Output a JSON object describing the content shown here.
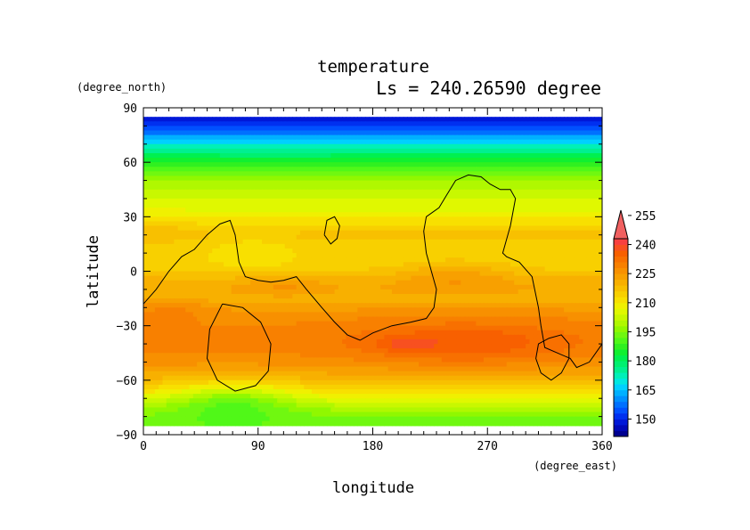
{
  "chart_data": {
    "type": "heatmap",
    "title": "temperature",
    "subtitle": "Ls = 240.26590 degree",
    "xlabel": "longitude",
    "ylabel": "latitude",
    "x_units": "(degree_east)",
    "y_units": "(degree_north)",
    "xlim": [
      0,
      360
    ],
    "ylim": [
      -90,
      90
    ],
    "x_ticks": [
      0,
      90,
      180,
      270,
      360
    ],
    "y_ticks": [
      90,
      60,
      30,
      0,
      -30,
      -60,
      -90
    ],
    "x_tick_labels": [
      "0",
      "90",
      "180",
      "270",
      "360"
    ],
    "y_tick_labels": [
      "90",
      "60",
      "30",
      "0",
      "−30",
      "−60",
      "−90"
    ],
    "grid": false,
    "colorbar": {
      "levels": [
        141,
        144,
        147,
        150,
        153,
        156,
        159,
        162,
        165,
        168,
        171,
        174,
        177,
        180,
        183,
        186,
        189,
        192,
        195,
        198,
        201,
        204,
        207,
        210,
        213,
        216,
        219,
        222,
        225,
        228,
        231,
        234,
        237,
        240,
        243,
        246,
        249,
        252,
        255,
        258
      ],
      "tick_values": [
        150,
        165,
        180,
        195,
        210,
        225,
        240,
        255
      ],
      "tick_labels": [
        "150",
        "165",
        "180",
        "195",
        "210",
        "225",
        "240",
        "255"
      ],
      "extend": "max"
    },
    "latitude_profile": {
      "lat": [
        85,
        80,
        75,
        70,
        65,
        60,
        55,
        50,
        45,
        40,
        35,
        30,
        25,
        20,
        15,
        10,
        5,
        0,
        -5,
        -10,
        -15,
        -20,
        -25,
        -30,
        -35,
        -40,
        -45,
        -50,
        -55,
        -60,
        -65,
        -70,
        -75,
        -80,
        -85
      ],
      "temp": [
        147,
        152,
        160,
        170,
        178,
        186,
        192,
        198,
        201,
        204,
        206,
        209,
        214,
        217,
        215,
        214,
        214,
        216,
        220,
        222,
        220,
        224,
        227,
        228,
        229,
        229,
        228,
        226,
        223,
        219,
        214,
        207,
        200,
        195,
        193
      ]
    },
    "anomalies": [
      {
        "lon": 250,
        "lat": -40,
        "rlon": 80,
        "rlat": 12,
        "delta": 8
      },
      {
        "lon": 205,
        "lat": -40,
        "rlon": 18,
        "rlat": 4,
        "delta": 5
      },
      {
        "lon": 70,
        "lat": -70,
        "rlon": 50,
        "rlat": 10,
        "delta": -12
      },
      {
        "lon": 85,
        "lat": 10,
        "rlon": 30,
        "rlat": 10,
        "delta": -4
      },
      {
        "lon": 20,
        "lat": -20,
        "rlon": 30,
        "rlat": 6,
        "delta": 4
      },
      {
        "lon": 245,
        "lat": -2,
        "rlon": 45,
        "rlat": 8,
        "delta": 6
      },
      {
        "lon": 110,
        "lat": -8,
        "rlon": 30,
        "rlat": 6,
        "delta": 4
      },
      {
        "lon": 10,
        "lat": 25,
        "rlon": 20,
        "rlat": 8,
        "delta": 3
      }
    ],
    "contours": [
      {
        "name": "main-boundary",
        "points": [
          [
            0,
            -18
          ],
          [
            10,
            -10
          ],
          [
            20,
            0
          ],
          [
            30,
            8
          ],
          [
            40,
            12
          ],
          [
            50,
            20
          ],
          [
            60,
            26
          ],
          [
            68,
            28
          ],
          [
            72,
            20
          ],
          [
            75,
            5
          ],
          [
            80,
            -3
          ],
          [
            90,
            -5
          ],
          [
            100,
            -6
          ],
          [
            110,
            -5
          ],
          [
            120,
            -3
          ],
          [
            128,
            -10
          ],
          [
            140,
            -20
          ],
          [
            150,
            -28
          ],
          [
            160,
            -35
          ],
          [
            170,
            -38
          ],
          [
            180,
            -34
          ],
          [
            195,
            -30
          ],
          [
            210,
            -28
          ],
          [
            222,
            -26
          ],
          [
            228,
            -20
          ],
          [
            230,
            -10
          ],
          [
            226,
            0
          ],
          [
            222,
            10
          ],
          [
            220,
            22
          ],
          [
            222,
            30
          ],
          [
            232,
            35
          ],
          [
            238,
            42
          ],
          [
            245,
            50
          ],
          [
            255,
            53
          ],
          [
            265,
            52
          ],
          [
            272,
            48
          ],
          [
            280,
            45
          ],
          [
            288,
            45
          ],
          [
            292,
            40
          ],
          [
            288,
            25
          ],
          [
            282,
            10
          ],
          [
            285,
            8
          ],
          [
            295,
            5
          ],
          [
            305,
            -3
          ],
          [
            310,
            -20
          ],
          [
            312,
            -30
          ],
          [
            315,
            -42
          ],
          [
            325,
            -45
          ],
          [
            335,
            -48
          ],
          [
            340,
            -53
          ],
          [
            350,
            -50
          ],
          [
            360,
            -40
          ]
        ]
      },
      {
        "name": "small-loop",
        "points": [
          [
            142,
            20
          ],
          [
            144,
            28
          ],
          [
            150,
            30
          ],
          [
            154,
            25
          ],
          [
            152,
            18
          ],
          [
            147,
            15
          ],
          [
            142,
            20
          ]
        ]
      },
      {
        "name": "southwest-ring",
        "points": [
          [
            62,
            -18
          ],
          [
            78,
            -20
          ],
          [
            92,
            -28
          ],
          [
            100,
            -40
          ],
          [
            98,
            -55
          ],
          [
            88,
            -63
          ],
          [
            72,
            -66
          ],
          [
            58,
            -60
          ],
          [
            50,
            -48
          ],
          [
            52,
            -32
          ],
          [
            62,
            -18
          ]
        ]
      },
      {
        "name": "southeast-ring",
        "points": [
          [
            318,
            -37
          ],
          [
            328,
            -35
          ],
          [
            334,
            -40
          ],
          [
            334,
            -48
          ],
          [
            328,
            -56
          ],
          [
            320,
            -60
          ],
          [
            312,
            -56
          ],
          [
            308,
            -48
          ],
          [
            310,
            -40
          ],
          [
            318,
            -37
          ]
        ]
      }
    ]
  }
}
